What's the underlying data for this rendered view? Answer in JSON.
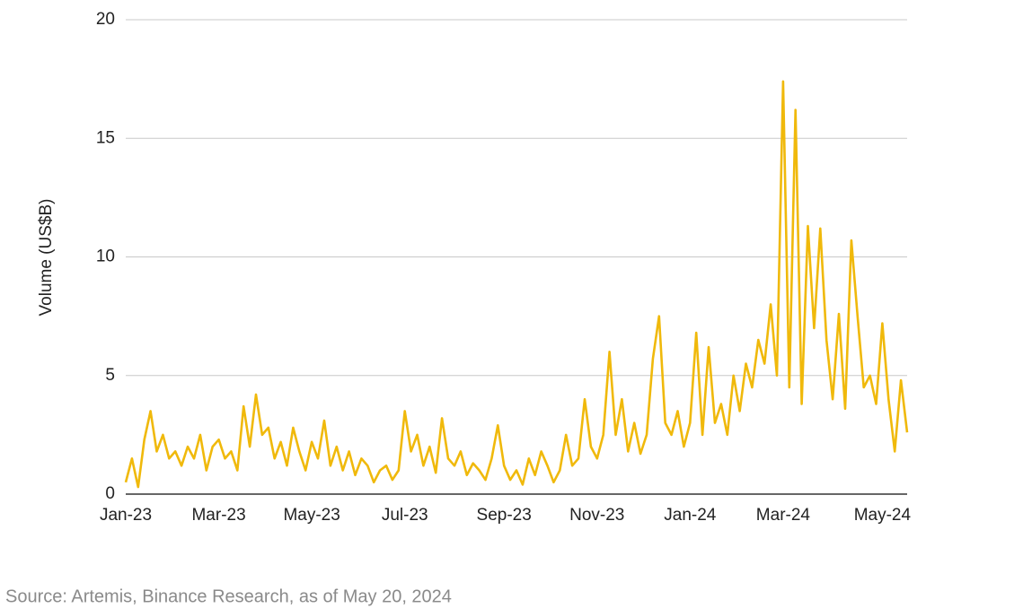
{
  "chart_data": {
    "type": "line",
    "y_label": "Volume (US$B)",
    "source": "Source: Artemis, Binance Research, as of May 20, 2024",
    "categories": [
      "Jan-23",
      null,
      null,
      null,
      null,
      null,
      null,
      null,
      null,
      null,
      null,
      null,
      null,
      null,
      null,
      "Mar-23",
      null,
      null,
      null,
      null,
      null,
      null,
      null,
      null,
      null,
      null,
      null,
      null,
      null,
      null,
      "May-23",
      null,
      null,
      null,
      null,
      null,
      null,
      null,
      null,
      null,
      null,
      null,
      null,
      null,
      null,
      "Jul-23",
      null,
      null,
      null,
      null,
      null,
      null,
      null,
      null,
      null,
      null,
      null,
      null,
      null,
      null,
      null,
      "Sep-23",
      null,
      null,
      null,
      null,
      null,
      null,
      null,
      null,
      null,
      null,
      null,
      null,
      null,
      null,
      "Nov-23",
      null,
      null,
      null,
      null,
      null,
      null,
      null,
      null,
      null,
      null,
      null,
      null,
      null,
      null,
      "Jan-24",
      null,
      null,
      null,
      null,
      null,
      null,
      null,
      null,
      null,
      null,
      null,
      null,
      null,
      null,
      "Mar-24",
      null,
      null,
      null,
      null,
      null,
      null,
      null,
      null,
      null,
      null,
      null,
      null,
      null,
      null,
      null,
      "May-24",
      null,
      null,
      null,
      null
    ],
    "series": [
      {
        "color": "#f0b90b",
        "values": [
          0.5,
          1.5,
          0.3,
          2.3,
          3.5,
          1.8,
          2.5,
          1.5,
          1.8,
          1.2,
          2.0,
          1.5,
          2.5,
          1.0,
          2.0,
          2.3,
          1.5,
          1.8,
          1.0,
          3.7,
          2.0,
          4.2,
          2.5,
          2.8,
          1.5,
          2.2,
          1.2,
          2.8,
          1.8,
          1.0,
          2.2,
          1.5,
          3.1,
          1.2,
          2.0,
          1.0,
          1.8,
          0.8,
          1.5,
          1.2,
          0.5,
          1.0,
          1.2,
          0.6,
          1.0,
          3.5,
          1.8,
          2.5,
          1.2,
          2.0,
          0.9,
          3.2,
          1.5,
          1.2,
          1.8,
          0.8,
          1.3,
          1.0,
          0.6,
          1.5,
          2.9,
          1.2,
          0.6,
          1.0,
          0.4,
          1.5,
          0.8,
          1.8,
          1.2,
          0.5,
          1.0,
          2.5,
          1.2,
          1.5,
          4.0,
          2.0,
          1.5,
          2.5,
          6.0,
          2.5,
          4.0,
          1.8,
          3.0,
          1.7,
          2.5,
          5.7,
          7.5,
          3.0,
          2.5,
          3.5,
          2.0,
          3.0,
          6.8,
          2.5,
          6.2,
          3.0,
          3.8,
          2.5,
          5.0,
          3.5,
          5.5,
          4.5,
          6.5,
          5.5,
          8.0,
          5.0,
          17.4,
          4.5,
          16.2,
          3.8,
          11.3,
          7.0,
          11.2,
          6.5,
          4.0,
          7.6,
          3.6,
          10.7,
          7.5,
          4.5,
          5.0,
          3.8,
          7.2,
          4.0,
          1.8,
          4.8,
          2.6
        ]
      }
    ],
    "ylim": [
      0,
      20
    ],
    "yticks": [
      0,
      5,
      10,
      15,
      20
    ],
    "grid": true
  }
}
